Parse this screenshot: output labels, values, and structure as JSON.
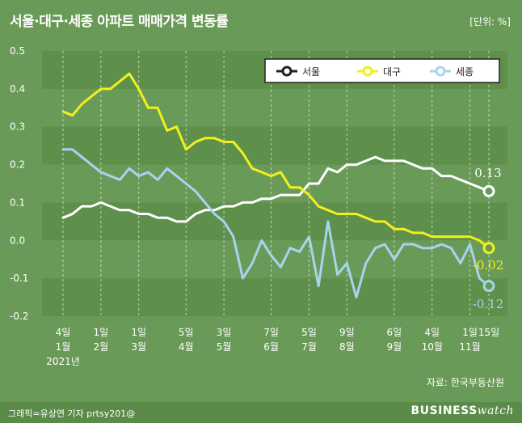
{
  "title": "서울·대구·세종 아파트 매매가격 변동률",
  "unit": "[단위: %]",
  "source": "자료: 한국부동산원",
  "credit": "그래픽=유상연 기자 prtsy201@",
  "logo_main": "BUSINESS",
  "logo_tail": "watch",
  "colors": {
    "background": "#6a9a57",
    "band": "#5e8f4b",
    "seoul": "#ffffff",
    "daegu": "#f2f01c",
    "sejong": "#a6d4ef"
  },
  "chart_data": {
    "type": "line",
    "title": "서울·대구·세종 아파트 매매가격 변동률",
    "ylim": [
      -0.2,
      0.5
    ],
    "yticks": [
      "0.5",
      "0.4",
      "0.3",
      "0.2",
      "0.1",
      "0.0",
      "-0.1",
      "-0.2"
    ],
    "ytick_values": [
      0.5,
      0.4,
      0.3,
      0.2,
      0.1,
      0.0,
      -0.1,
      -0.2
    ],
    "grid": "horizontal bands",
    "legend_position": "top-right",
    "x_labels": [
      {
        "i": 0,
        "lines": [
          "4일",
          "1월",
          "2021년"
        ]
      },
      {
        "i": 4,
        "lines": [
          "1일",
          "2월"
        ]
      },
      {
        "i": 8,
        "lines": [
          "1일",
          "3월"
        ]
      },
      {
        "i": 13,
        "lines": [
          "5일",
          "4월"
        ]
      },
      {
        "i": 17,
        "lines": [
          "3일",
          "5월"
        ]
      },
      {
        "i": 22,
        "lines": [
          "7일",
          "6월"
        ]
      },
      {
        "i": 26,
        "lines": [
          "5일",
          "7월"
        ]
      },
      {
        "i": 30,
        "lines": [
          "9일",
          "8월"
        ]
      },
      {
        "i": 35,
        "lines": [
          "6일",
          "9월"
        ]
      },
      {
        "i": 39,
        "lines": [
          "4일",
          "10월"
        ]
      },
      {
        "i": 43,
        "lines": [
          "1일",
          "11월"
        ]
      },
      {
        "i": 45,
        "lines": [
          "15일"
        ]
      }
    ],
    "series": [
      {
        "name": "서울",
        "values": [
          0.06,
          0.07,
          0.09,
          0.09,
          0.1,
          0.09,
          0.08,
          0.08,
          0.07,
          0.07,
          0.06,
          0.06,
          0.05,
          0.05,
          0.07,
          0.08,
          0.08,
          0.09,
          0.09,
          0.1,
          0.1,
          0.11,
          0.11,
          0.12,
          0.12,
          0.12,
          0.15,
          0.15,
          0.19,
          0.18,
          0.2,
          0.2,
          0.21,
          0.22,
          0.21,
          0.21,
          0.21,
          0.2,
          0.19,
          0.19,
          0.17,
          0.17,
          0.16,
          0.15,
          0.14,
          0.13
        ]
      },
      {
        "name": "대구",
        "values": [
          0.34,
          0.33,
          0.36,
          0.38,
          0.4,
          0.4,
          0.42,
          0.44,
          0.4,
          0.35,
          0.35,
          0.29,
          0.3,
          0.24,
          0.26,
          0.27,
          0.27,
          0.26,
          0.26,
          0.23,
          0.19,
          0.18,
          0.17,
          0.18,
          0.14,
          0.14,
          0.12,
          0.09,
          0.08,
          0.07,
          0.07,
          0.07,
          0.06,
          0.05,
          0.05,
          0.03,
          0.03,
          0.02,
          0.02,
          0.01,
          0.01,
          0.01,
          0.01,
          0.01,
          0.0,
          -0.02
        ]
      },
      {
        "name": "세종",
        "values": [
          0.24,
          0.24,
          0.22,
          0.2,
          0.18,
          0.17,
          0.16,
          0.19,
          0.17,
          0.18,
          0.16,
          0.19,
          0.17,
          0.15,
          0.13,
          0.1,
          0.07,
          0.05,
          0.01,
          -0.1,
          -0.06,
          0.0,
          -0.04,
          -0.07,
          -0.02,
          -0.03,
          0.01,
          -0.12,
          0.05,
          -0.09,
          -0.06,
          -0.15,
          -0.06,
          -0.02,
          -0.01,
          -0.05,
          -0.01,
          -0.01,
          -0.02,
          -0.02,
          -0.01,
          -0.02,
          -0.06,
          -0.01,
          -0.1,
          -0.12
        ]
      }
    ],
    "end_labels": [
      "0.13",
      "-0.02",
      "-0.12"
    ]
  }
}
